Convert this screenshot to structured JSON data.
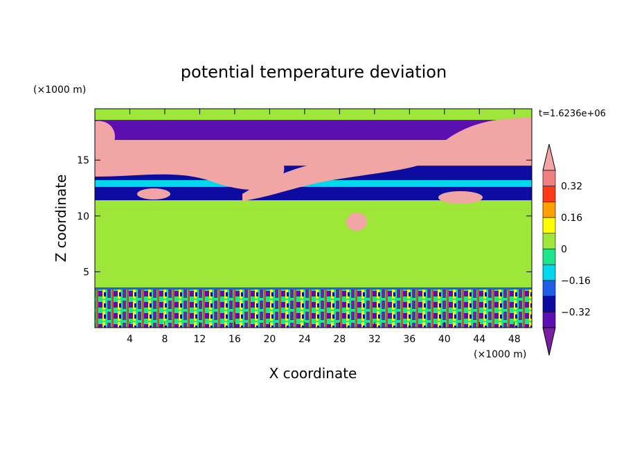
{
  "chart_data": {
    "type": "heatmap",
    "title": "potential temperature deviation",
    "time_label": "t=1.6236e+06",
    "xlabel": "X coordinate",
    "ylabel": "Z coordinate",
    "x_unit_label": "(×1000 m)",
    "y_unit_label": "(×1000 m)",
    "xlim": [
      0,
      50
    ],
    "ylim": [
      0,
      19.6
    ],
    "x_ticks": [
      4,
      8,
      12,
      16,
      20,
      24,
      28,
      32,
      36,
      40,
      44,
      48
    ],
    "y_ticks": [
      5,
      10,
      15
    ],
    "colorbar": {
      "levels": [
        -0.4,
        -0.32,
        -0.24,
        -0.16,
        -0.08,
        0,
        0.08,
        0.16,
        0.24,
        0.32,
        0.4
      ],
      "tick_labels": [
        "0.32",
        "0.16",
        "0",
        "−0.16",
        "−0.32"
      ],
      "tick_values": [
        0.32,
        0.16,
        0,
        -0.16,
        -0.32
      ],
      "colors": [
        "#7a1fa2",
        "#5c0fb0",
        "#0c0ca0",
        "#1f5fe6",
        "#00d8f0",
        "#1de58a",
        "#9ee63a",
        "#ffff00",
        "#ff9f00",
        "#ff3a1a",
        "#f08080",
        "#f2a5a5"
      ]
    },
    "field_bands": [
      {
        "z_range": [
          18.6,
          19.6
        ],
        "value": 0.02
      },
      {
        "z_range": [
          16.8,
          18.6
        ],
        "value": -0.35
      },
      {
        "z_range": [
          14.5,
          16.8
        ],
        "value": 0.42
      },
      {
        "z_range": [
          13.2,
          14.5
        ],
        "value": -0.3
      },
      {
        "z_range": [
          12.6,
          13.2
        ],
        "value": -0.12
      },
      {
        "z_range": [
          11.4,
          12.6
        ],
        "value": -0.3
      },
      {
        "z_range": [
          10.5,
          11.4
        ],
        "value": 0.04
      },
      {
        "z_range": [
          3.6,
          10.5
        ],
        "value": 0.06
      },
      {
        "z_range": [
          0,
          3.6
        ],
        "value": -0.2
      }
    ]
  }
}
